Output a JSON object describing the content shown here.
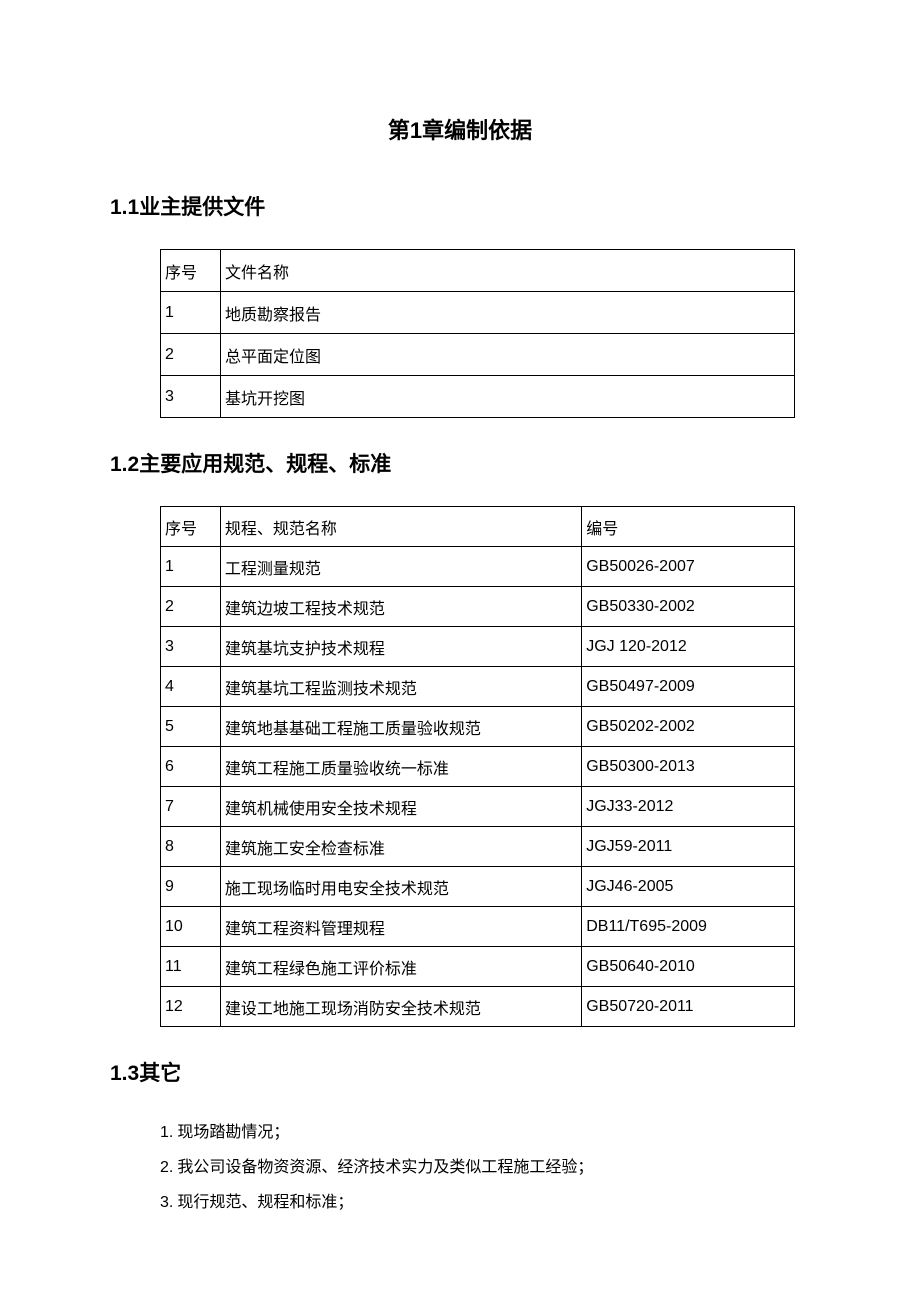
{
  "chapter_title": "第1章编制依据",
  "section1": {
    "title": "1.1业主提供文件",
    "headers": {
      "col1": "序号",
      "col2": "文件名称"
    },
    "rows": [
      {
        "num": "1",
        "name": "地质勘察报告"
      },
      {
        "num": "2",
        "name": "总平面定位图"
      },
      {
        "num": "3",
        "name": "基坑开挖图"
      }
    ]
  },
  "section2": {
    "title": "1.2主要应用规范、规程、标准",
    "headers": {
      "col1": "序号",
      "col2": "规程、规范名称",
      "col3": "编号"
    },
    "rows": [
      {
        "num": "1",
        "name": "工程测量规范",
        "code": "GB50026-2007"
      },
      {
        "num": "2",
        "name": "建筑边坡工程技术规范",
        "code": "GB50330-2002"
      },
      {
        "num": "3",
        "name": "建筑基坑支护技术规程",
        "code": "JGJ 120-2012"
      },
      {
        "num": "4",
        "name": "建筑基坑工程监测技术规范",
        "code": "GB50497-2009"
      },
      {
        "num": "5",
        "name": "建筑地基基础工程施工质量验收规范",
        "code": "GB50202-2002"
      },
      {
        "num": "6",
        "name": "建筑工程施工质量验收统一标准",
        "code": "GB50300-2013"
      },
      {
        "num": "7",
        "name": "建筑机械使用安全技术规程",
        "code": "JGJ33-2012"
      },
      {
        "num": "8",
        "name": "建筑施工安全检查标准",
        "code": "JGJ59-2011"
      },
      {
        "num": "9",
        "name": "施工现场临时用电安全技术规范",
        "code": "JGJ46-2005"
      },
      {
        "num": "10",
        "name": "建筑工程资料管理规程",
        "code": "DB11/T695-2009"
      },
      {
        "num": "11",
        "name": "建筑工程绿色施工评价标准",
        "code": "GB50640-2010"
      },
      {
        "num": "12",
        "name": "建设工地施工现场消防安全技术规范",
        "code": "GB50720-2011"
      }
    ]
  },
  "section3": {
    "title": "1.3其它",
    "items": [
      {
        "num": "1.",
        "text": " 现场踏勘情况；"
      },
      {
        "num": "2.",
        "text": " 我公司设备物资资源、经济技术实力及类似工程施工经验；"
      },
      {
        "num": "3.",
        "text": " 现行规范、规程和标准；"
      }
    ]
  },
  "colors": {
    "background": "#ffffff",
    "text": "#000000",
    "border": "#000000"
  }
}
